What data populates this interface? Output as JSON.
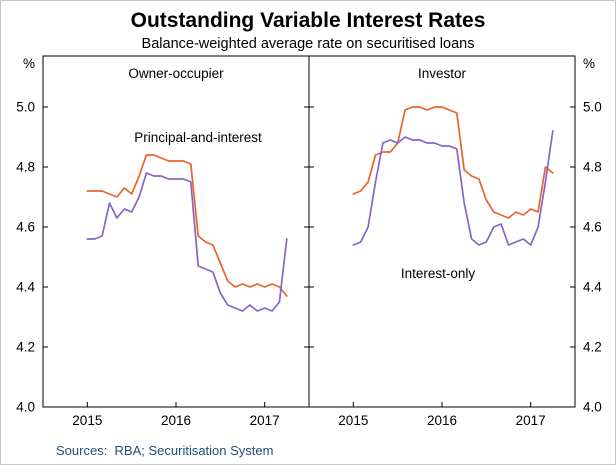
{
  "chart_data": {
    "type": "line",
    "title": "Outstanding Variable Interest Rates",
    "subtitle": "Balance-weighted average rate on securitised loans",
    "sources": "Sources:  RBA; Securitisation System",
    "sources_color": "#1f4e79",
    "unit": "%",
    "ylim": [
      4.0,
      5.17
    ],
    "yticks": [
      4.0,
      4.2,
      4.4,
      4.6,
      4.8,
      5.0
    ],
    "xlim": [
      2014.5,
      2017.5
    ],
    "xticks": [
      2015,
      2016,
      2017
    ],
    "x_start": 2015.0,
    "x_frequency": "monthly",
    "legend_position": "in-panel-annotations",
    "grid": false,
    "panels": [
      {
        "label": "Owner-occupier",
        "annotation": {
          "text": "Principal-and-interest",
          "color": "#e8642b"
        },
        "series": [
          {
            "name": "Principal-and-interest",
            "color": "#e8642b",
            "values": [
              4.72,
              4.72,
              4.72,
              4.71,
              4.7,
              4.73,
              4.71,
              4.77,
              4.84,
              4.84,
              4.83,
              4.82,
              4.82,
              4.82,
              4.81,
              4.57,
              4.55,
              4.54,
              4.48,
              4.42,
              4.4,
              4.41,
              4.4,
              4.41,
              4.4,
              4.41,
              4.4,
              4.37
            ]
          },
          {
            "name": "Interest-only",
            "color": "#8566c8",
            "values": [
              4.56,
              4.56,
              4.57,
              4.68,
              4.63,
              4.66,
              4.65,
              4.7,
              4.78,
              4.77,
              4.77,
              4.76,
              4.76,
              4.76,
              4.75,
              4.47,
              4.46,
              4.45,
              4.38,
              4.34,
              4.33,
              4.32,
              4.34,
              4.32,
              4.33,
              4.32,
              4.35,
              4.56
            ]
          }
        ]
      },
      {
        "label": "Investor",
        "annotation": {
          "text": "Interest-only",
          "color": "#8566c8"
        },
        "series": [
          {
            "name": "Principal-and-interest",
            "color": "#e8642b",
            "values": [
              4.71,
              4.72,
              4.75,
              4.84,
              4.85,
              4.85,
              4.88,
              4.99,
              5.0,
              5.0,
              4.99,
              5.0,
              5.0,
              4.99,
              4.98,
              4.79,
              4.77,
              4.76,
              4.69,
              4.65,
              4.64,
              4.63,
              4.65,
              4.64,
              4.66,
              4.65,
              4.8,
              4.78
            ]
          },
          {
            "name": "Interest-only",
            "color": "#8566c8",
            "values": [
              4.54,
              4.55,
              4.6,
              4.75,
              4.88,
              4.89,
              4.88,
              4.9,
              4.89,
              4.89,
              4.88,
              4.88,
              4.87,
              4.87,
              4.86,
              4.68,
              4.56,
              4.54,
              4.55,
              4.6,
              4.61,
              4.54,
              4.55,
              4.56,
              4.54,
              4.6,
              4.75,
              4.92
            ]
          }
        ]
      }
    ]
  }
}
